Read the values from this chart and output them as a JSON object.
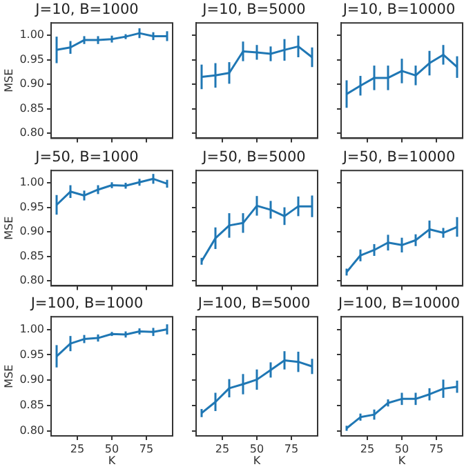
{
  "chart_data": [
    {
      "type": "line",
      "title": "J=10, B=1000",
      "ylabel": "MSE",
      "x": [
        10,
        20,
        30,
        40,
        50,
        60,
        70,
        80,
        90
      ],
      "xlim": [
        6,
        94
      ],
      "ylim": [
        0.79,
        1.025
      ],
      "xticks": [
        25,
        50,
        75
      ],
      "yticks": [
        {
          "value": 0.8,
          "label": "0.80"
        },
        0.85,
        {
          "value": 0.9,
          "label": "0.90"
        },
        0.95,
        {
          "value": 1.0,
          "label": "1.00"
        }
      ],
      "tick_labels": "y",
      "grid": false,
      "marker": "none",
      "series": [
        {
          "color": "#1f77b4",
          "values": [
            0.97,
            0.975,
            0.99,
            0.99,
            0.992,
            0.997,
            1.004,
            0.998,
            0.998
          ],
          "errors": [
            0.027,
            0.013,
            0.008,
            0.008,
            0.007,
            0.005,
            0.01,
            0.008,
            0.01
          ]
        }
      ]
    },
    {
      "type": "line",
      "title": "J=10, B=5000",
      "x": [
        10,
        20,
        30,
        40,
        50,
        60,
        70,
        80,
        90
      ],
      "xlim": [
        6,
        94
      ],
      "ylim": [
        0.79,
        1.025
      ],
      "xticks": [
        25,
        50,
        75
      ],
      "yticks": [
        0.8,
        0.85,
        0.9,
        0.95,
        1.0
      ],
      "tick_labels": false,
      "grid": false,
      "marker": "none",
      "series": [
        {
          "color": "#1f77b4",
          "values": [
            0.915,
            0.918,
            0.923,
            0.967,
            0.965,
            0.962,
            0.97,
            0.977,
            0.955
          ],
          "errors": [
            0.025,
            0.025,
            0.022,
            0.02,
            0.015,
            0.015,
            0.022,
            0.022,
            0.02
          ]
        }
      ]
    },
    {
      "type": "line",
      "title": "J=10, B=10000",
      "x": [
        10,
        20,
        30,
        40,
        50,
        60,
        70,
        80,
        90
      ],
      "xlim": [
        6,
        94
      ],
      "ylim": [
        0.79,
        1.025
      ],
      "xticks": [
        25,
        50,
        75
      ],
      "yticks": [
        0.8,
        0.85,
        0.9,
        0.95,
        1.0
      ],
      "tick_labels": false,
      "grid": false,
      "marker": "none",
      "series": [
        {
          "color": "#1f77b4",
          "values": [
            0.88,
            0.897,
            0.913,
            0.913,
            0.927,
            0.918,
            0.943,
            0.96,
            0.935
          ],
          "errors": [
            0.028,
            0.02,
            0.025,
            0.025,
            0.025,
            0.02,
            0.025,
            0.02,
            0.022
          ]
        }
      ]
    },
    {
      "type": "line",
      "title": "J=50, B=1000",
      "ylabel": "MSE",
      "x": [
        10,
        20,
        30,
        40,
        50,
        60,
        70,
        80,
        90
      ],
      "xlim": [
        6,
        94
      ],
      "ylim": [
        0.79,
        1.025
      ],
      "xticks": [
        25,
        50,
        75
      ],
      "yticks": [
        {
          "value": 0.8,
          "label": "0.80"
        },
        0.85,
        {
          "value": 0.9,
          "label": "0.90"
        },
        0.95,
        {
          "value": 1.0,
          "label": "1.00"
        }
      ],
      "tick_labels": "y",
      "grid": false,
      "marker": "none",
      "series": [
        {
          "color": "#1f77b4",
          "values": [
            0.955,
            0.982,
            0.974,
            0.986,
            0.995,
            0.994,
            1.001,
            1.008,
            0.998
          ],
          "errors": [
            0.02,
            0.013,
            0.01,
            0.009,
            0.006,
            0.006,
            0.007,
            0.01,
            0.008
          ]
        }
      ]
    },
    {
      "type": "line",
      "title": "J=50, B=5000",
      "x": [
        10,
        20,
        30,
        40,
        50,
        60,
        70,
        80,
        90
      ],
      "xlim": [
        6,
        94
      ],
      "ylim": [
        0.79,
        1.025
      ],
      "xticks": [
        25,
        50,
        75
      ],
      "yticks": [
        0.8,
        0.85,
        0.9,
        0.95,
        1.0
      ],
      "tick_labels": false,
      "grid": false,
      "marker": "none",
      "series": [
        {
          "color": "#1f77b4",
          "values": [
            0.84,
            0.887,
            0.913,
            0.918,
            0.953,
            0.945,
            0.932,
            0.952,
            0.952
          ],
          "errors": [
            0.007,
            0.022,
            0.025,
            0.02,
            0.02,
            0.018,
            0.018,
            0.02,
            0.022
          ]
        }
      ]
    },
    {
      "type": "line",
      "title": "J=50, B=10000",
      "x": [
        10,
        20,
        30,
        40,
        50,
        60,
        70,
        80,
        90
      ],
      "xlim": [
        6,
        94
      ],
      "ylim": [
        0.79,
        1.025
      ],
      "xticks": [
        25,
        50,
        75
      ],
      "yticks": [
        0.8,
        0.85,
        0.9,
        0.95,
        1.0
      ],
      "tick_labels": false,
      "grid": false,
      "marker": "none",
      "series": [
        {
          "color": "#1f77b4",
          "values": [
            0.818,
            0.852,
            0.863,
            0.878,
            0.873,
            0.883,
            0.905,
            0.898,
            0.91
          ],
          "errors": [
            0.007,
            0.012,
            0.012,
            0.016,
            0.015,
            0.012,
            0.018,
            0.01,
            0.02
          ]
        }
      ]
    },
    {
      "type": "line",
      "title": "J=100, B=1000",
      "ylabel": "MSE",
      "xlabel": "K",
      "x": [
        10,
        20,
        30,
        40,
        50,
        60,
        70,
        80,
        90
      ],
      "xlim": [
        6,
        94
      ],
      "ylim": [
        0.79,
        1.025
      ],
      "xticks": [
        25,
        50,
        75
      ],
      "yticks": [
        {
          "value": 0.8,
          "label": "0.80"
        },
        0.85,
        {
          "value": 0.9,
          "label": "0.90"
        },
        0.95,
        {
          "value": 1.0,
          "label": "1.00"
        }
      ],
      "grid": false,
      "marker": "none",
      "series": [
        {
          "color": "#1f77b4",
          "values": [
            0.947,
            0.972,
            0.981,
            0.983,
            0.991,
            0.99,
            0.996,
            0.995,
            1.0
          ],
          "errors": [
            0.022,
            0.015,
            0.008,
            0.007,
            0.004,
            0.006,
            0.006,
            0.008,
            0.01
          ]
        }
      ]
    },
    {
      "type": "line",
      "title": "J=100, B=5000",
      "xlabel": "K",
      "x": [
        10,
        20,
        30,
        40,
        50,
        60,
        70,
        80,
        90
      ],
      "xlim": [
        6,
        94
      ],
      "ylim": [
        0.79,
        1.025
      ],
      "xticks": [
        25,
        50,
        75
      ],
      "yticks": [
        0.8,
        0.85,
        0.9,
        0.95,
        1.0
      ],
      "tick_labels": "x",
      "grid": false,
      "marker": "none",
      "series": [
        {
          "color": "#1f77b4",
          "values": [
            0.835,
            0.857,
            0.884,
            0.892,
            0.901,
            0.92,
            0.939,
            0.936,
            0.927
          ],
          "errors": [
            0.008,
            0.018,
            0.018,
            0.02,
            0.02,
            0.015,
            0.018,
            0.02,
            0.015
          ]
        }
      ]
    },
    {
      "type": "line",
      "title": "J=100, B=10000",
      "xlabel": "K",
      "x": [
        10,
        20,
        30,
        40,
        50,
        60,
        70,
        80,
        90
      ],
      "xlim": [
        6,
        94
      ],
      "ylim": [
        0.79,
        1.025
      ],
      "xticks": [
        25,
        50,
        75
      ],
      "yticks": [
        0.8,
        0.85,
        0.9,
        0.95,
        1.0
      ],
      "tick_labels": "x",
      "grid": false,
      "marker": "none",
      "series": [
        {
          "color": "#1f77b4",
          "values": [
            0.805,
            0.827,
            0.832,
            0.855,
            0.863,
            0.863,
            0.872,
            0.883,
            0.887
          ],
          "errors": [
            0.005,
            0.007,
            0.01,
            0.007,
            0.012,
            0.012,
            0.012,
            0.018,
            0.012
          ]
        }
      ]
    }
  ]
}
